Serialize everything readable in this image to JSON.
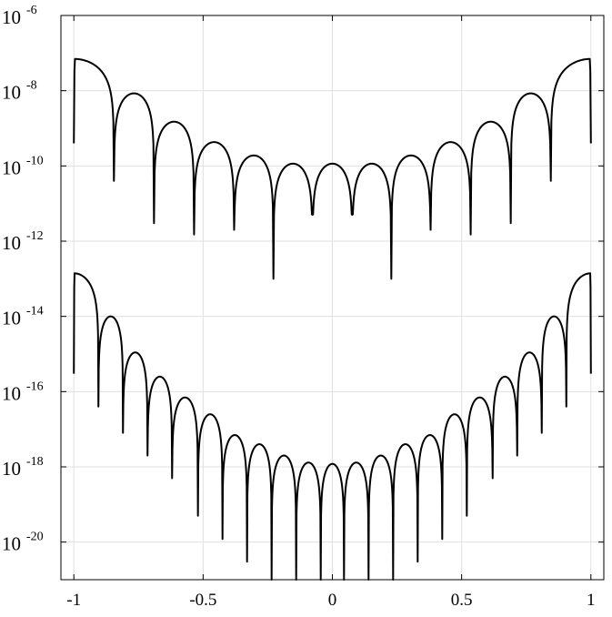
{
  "chart_data": {
    "type": "line",
    "title": "",
    "xlabel": "",
    "ylabel": "",
    "xscale": "linear",
    "yscale": "log",
    "xlim": [
      -1.05,
      1.05
    ],
    "ylim": [
      1e-21,
      1e-06
    ],
    "grid": true,
    "legend": "none",
    "line_color": "#000000",
    "grid_color": "#e0e0e0",
    "x_ticks": [
      {
        "value": -1,
        "label": "-1"
      },
      {
        "value": -0.5,
        "label": "-0.5"
      },
      {
        "value": 0,
        "label": "0"
      },
      {
        "value": 0.5,
        "label": "0.5"
      },
      {
        "value": 1,
        "label": "1"
      }
    ],
    "y_ticks": [
      {
        "value": 1e-06,
        "base": "10",
        "exp": "-6"
      },
      {
        "value": 1e-08,
        "base": "10",
        "exp": "-8"
      },
      {
        "value": 1e-10,
        "base": "10",
        "exp": "-10"
      },
      {
        "value": 1e-12,
        "base": "10",
        "exp": "-12"
      },
      {
        "value": 1e-14,
        "base": "10",
        "exp": "-14"
      },
      {
        "value": 1e-16,
        "base": "10",
        "exp": "-16"
      },
      {
        "value": 1e-18,
        "base": "10",
        "exp": "-18"
      },
      {
        "value": 1e-20,
        "base": "10",
        "exp": "-20"
      }
    ],
    "series": [
      {
        "x_range": [
          -1,
          1
        ],
        "zeros": [
          -0.845,
          -0.69,
          -0.535,
          -0.38,
          -0.228,
          -0.077,
          0.077,
          0.228,
          0.38,
          0.535,
          0.69,
          0.845
        ],
        "endpoint_values": [
          4e-10,
          4e-10
        ],
        "lobe_peaks": [
          7e-08,
          8.5e-09,
          1.5e-09,
          4.3e-10,
          1.9e-10,
          1.15e-10,
          1.15e-10,
          1.15e-10,
          1.9e-10,
          4.3e-10,
          1.5e-09,
          8.5e-09,
          7e-08
        ],
        "zero_dips": [
          4e-11,
          3e-12,
          1.5e-12,
          2e-12,
          1e-13,
          5e-12,
          5e-12,
          1e-13,
          2e-12,
          1.5e-12,
          3e-12,
          4e-11
        ]
      },
      {
        "x_range": [
          -1,
          1
        ],
        "zeros": [
          -0.905,
          -0.81,
          -0.715,
          -0.62,
          -0.52,
          -0.425,
          -0.33,
          -0.235,
          -0.14,
          -0.045,
          0.045,
          0.14,
          0.235,
          0.33,
          0.425,
          0.52,
          0.62,
          0.715,
          0.81,
          0.905
        ],
        "endpoint_values": [
          3e-16,
          3e-16
        ],
        "lobe_peaks": [
          1.4e-13,
          1e-14,
          1.1e-15,
          2.5e-16,
          7e-17,
          2.5e-17,
          7e-18,
          4e-18,
          2e-18,
          1.3e-18,
          1.2e-18,
          1.3e-18,
          2e-18,
          4e-18,
          7e-18,
          2.5e-17,
          7e-17,
          2.5e-16,
          1.1e-15,
          1e-14,
          1.4e-13
        ],
        "zero_dips": [
          4e-17,
          8e-18,
          2e-18,
          5e-19,
          5e-20,
          1.2e-20,
          3e-21,
          1e-21,
          8e-22,
          1e-22,
          1e-22,
          8e-22,
          1e-21,
          3e-21,
          1.2e-20,
          5e-20,
          5e-19,
          2e-18,
          8e-18,
          4e-17
        ]
      }
    ]
  }
}
